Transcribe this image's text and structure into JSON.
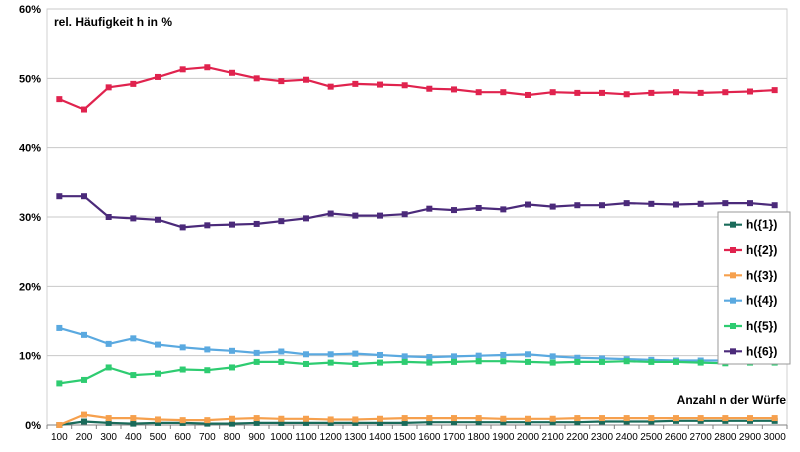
{
  "chart_data": {
    "type": "line",
    "title": "",
    "ylabel": "rel. Häufigkeit h in %",
    "xlabel": "Anzahl n der Würfe",
    "ylim": [
      0,
      60
    ],
    "yticks": [
      0,
      10,
      20,
      30,
      40,
      50,
      60
    ],
    "ytick_labels": [
      "0%",
      "10%",
      "20%",
      "30%",
      "40%",
      "50%",
      "60%"
    ],
    "grid": "horizontal",
    "legend_position": "right",
    "categories": [
      100,
      200,
      300,
      400,
      500,
      600,
      700,
      800,
      900,
      1000,
      1100,
      1200,
      1300,
      1400,
      1500,
      1600,
      1700,
      1800,
      1900,
      2000,
      2100,
      2200,
      2300,
      2400,
      2500,
      2600,
      2700,
      2800,
      2900,
      3000
    ],
    "series": [
      {
        "name": "h({1})",
        "color": "#1a6b5a",
        "values": [
          0.0,
          0.5,
          0.3,
          0.2,
          0.3,
          0.3,
          0.2,
          0.2,
          0.3,
          0.3,
          0.3,
          0.3,
          0.3,
          0.3,
          0.3,
          0.4,
          0.4,
          0.4,
          0.4,
          0.4,
          0.4,
          0.4,
          0.5,
          0.5,
          0.5,
          0.6,
          0.6,
          0.6,
          0.6,
          0.6
        ]
      },
      {
        "name": "h({2})",
        "color": "#e0234e",
        "values": [
          47.0,
          45.5,
          48.7,
          49.2,
          50.2,
          51.3,
          51.6,
          50.8,
          50.0,
          49.6,
          49.8,
          48.8,
          49.2,
          49.1,
          49.0,
          48.5,
          48.4,
          48.0,
          48.0,
          47.6,
          48.0,
          47.9,
          47.9,
          47.7,
          47.9,
          48.0,
          47.9,
          48.0,
          48.1,
          48.3
        ]
      },
      {
        "name": "h({3})",
        "color": "#f6a04d",
        "values": [
          0.0,
          1.5,
          1.0,
          1.0,
          0.8,
          0.7,
          0.7,
          0.9,
          1.0,
          0.9,
          0.9,
          0.8,
          0.8,
          0.9,
          1.0,
          1.0,
          1.0,
          1.0,
          0.9,
          0.9,
          0.9,
          1.0,
          1.0,
          1.0,
          1.0,
          1.0,
          1.0,
          1.0,
          1.0,
          1.0
        ]
      },
      {
        "name": "h({4})",
        "color": "#5aa9e0",
        "values": [
          14.0,
          13.0,
          11.7,
          12.5,
          11.6,
          11.2,
          10.9,
          10.7,
          10.4,
          10.6,
          10.2,
          10.2,
          10.3,
          10.1,
          9.9,
          9.8,
          9.9,
          10.0,
          10.1,
          10.2,
          9.9,
          9.7,
          9.6,
          9.5,
          9.4,
          9.3,
          9.3,
          9.3,
          9.2,
          9.1
        ]
      },
      {
        "name": "h({5})",
        "color": "#2ecc71",
        "values": [
          6.0,
          6.5,
          8.3,
          7.2,
          7.4,
          8.0,
          7.9,
          8.3,
          9.1,
          9.1,
          8.8,
          9.0,
          8.8,
          9.0,
          9.1,
          9.0,
          9.1,
          9.2,
          9.2,
          9.1,
          9.0,
          9.1,
          9.1,
          9.2,
          9.1,
          9.1,
          9.0,
          8.9,
          9.0,
          9.0
        ]
      },
      {
        "name": "h({6})",
        "color": "#4b2a7a",
        "values": [
          33.0,
          33.0,
          30.0,
          29.8,
          29.6,
          28.5,
          28.8,
          28.9,
          29.0,
          29.4,
          29.8,
          30.5,
          30.2,
          30.2,
          30.4,
          31.2,
          31.0,
          31.3,
          31.1,
          31.8,
          31.5,
          31.7,
          31.7,
          32.0,
          31.9,
          31.8,
          31.9,
          32.0,
          32.0,
          31.7
        ]
      }
    ]
  }
}
